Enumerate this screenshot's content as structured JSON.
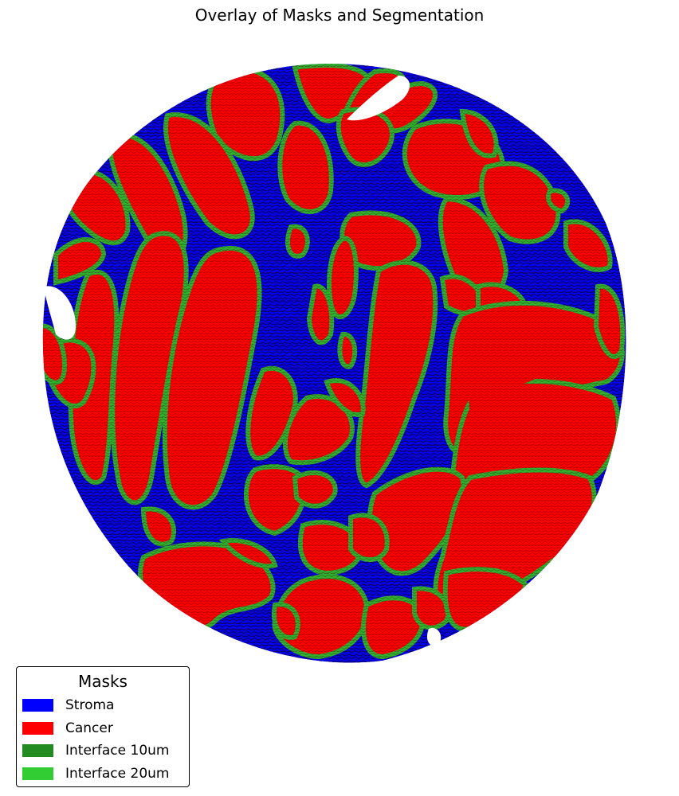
{
  "title": "Overlay of Masks and Segmentation",
  "legend": {
    "title": "Masks",
    "items": [
      {
        "label": "Stroma",
        "color": "#0000ff"
      },
      {
        "label": "Cancer",
        "color": "#ff0000"
      },
      {
        "label": "Interface 10um",
        "color": "#228b22"
      },
      {
        "label": "Interface 20um",
        "color": "#32cd32"
      }
    ]
  }
}
